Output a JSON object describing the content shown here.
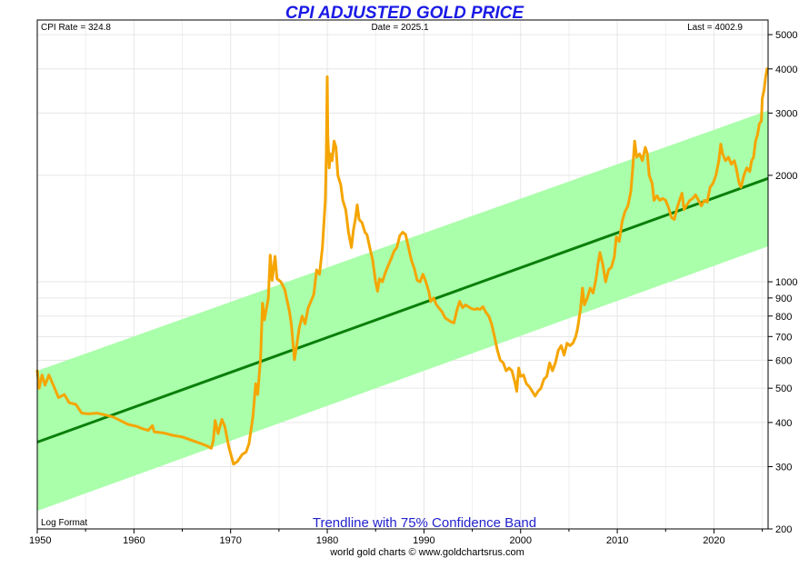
{
  "chart_data": {
    "type": "line",
    "title": "CPI ADJUSTED GOLD PRICE",
    "info": {
      "cpi_rate": "CPI Rate = 324.8",
      "date": "Date = 2025.1",
      "last": "Last = 4002.9"
    },
    "scale_note": "Log Format",
    "band_label": "Trendline with 75% Confidence Band",
    "credit": "world gold charts © www.goldchartsrus.com",
    "xlim": [
      1950,
      2025.6
    ],
    "ylim": [
      200,
      5500
    ],
    "y_scale": "log",
    "x_ticks": [
      1950,
      1960,
      1970,
      1980,
      1990,
      2000,
      2010,
      2020
    ],
    "x_tick_labels": [
      "1950",
      "1960",
      "1970",
      "1980",
      "1990",
      "2000",
      "2010",
      "2020"
    ],
    "y_ticks": [
      200,
      300,
      400,
      500,
      600,
      700,
      800,
      900,
      1000,
      2000,
      3000,
      4000,
      5000
    ],
    "y_tick_labels": [
      "200",
      "300",
      "400",
      "500",
      "600",
      "700",
      "800",
      "900",
      "1000",
      "2000",
      "3000",
      "4000",
      "5000"
    ],
    "grid": true,
    "colors": {
      "gold_line": "#f5a500",
      "trend_line": "#0a7f0a",
      "band_fill": "#aaffaa",
      "title": "#1a1ae6",
      "band_label": "#2222cc"
    },
    "trend": {
      "start": [
        1950,
        352
      ],
      "end": [
        2025.6,
        1960
      ]
    },
    "band": {
      "upper": [
        [
          1950,
          560
        ],
        [
          2025.6,
          3050
        ]
      ],
      "lower": [
        [
          1950,
          225
        ],
        [
          2025.6,
          1260
        ]
      ]
    },
    "series": [
      {
        "name": "CPI adjusted gold price",
        "points": [
          [
            1950.0,
            560
          ],
          [
            1950.2,
            500
          ],
          [
            1950.5,
            545
          ],
          [
            1950.8,
            510
          ],
          [
            1951.2,
            545
          ],
          [
            1951.8,
            500
          ],
          [
            1952.2,
            470
          ],
          [
            1952.8,
            480
          ],
          [
            1953.3,
            455
          ],
          [
            1954.0,
            450
          ],
          [
            1954.6,
            425
          ],
          [
            1955.3,
            423
          ],
          [
            1956.2,
            425
          ],
          [
            1957.0,
            420
          ],
          [
            1957.8,
            415
          ],
          [
            1958.6,
            405
          ],
          [
            1959.4,
            395
          ],
          [
            1960.3,
            390
          ],
          [
            1960.9,
            384
          ],
          [
            1961.5,
            380
          ],
          [
            1961.9,
            392
          ],
          [
            1962.1,
            376
          ],
          [
            1963.0,
            374
          ],
          [
            1964.0,
            368
          ],
          [
            1965.0,
            364
          ],
          [
            1966.0,
            356
          ],
          [
            1967.0,
            348
          ],
          [
            1967.6,
            343
          ],
          [
            1968.0,
            338
          ],
          [
            1968.2,
            355
          ],
          [
            1968.4,
            405
          ],
          [
            1968.7,
            372
          ],
          [
            1969.1,
            408
          ],
          [
            1969.4,
            390
          ],
          [
            1969.8,
            342
          ],
          [
            1970.3,
            305
          ],
          [
            1970.7,
            310
          ],
          [
            1971.2,
            325
          ],
          [
            1971.6,
            330
          ],
          [
            1971.9,
            348
          ],
          [
            1972.3,
            415
          ],
          [
            1972.6,
            515
          ],
          [
            1972.8,
            480
          ],
          [
            1973.1,
            610
          ],
          [
            1973.3,
            870
          ],
          [
            1973.5,
            780
          ],
          [
            1973.9,
            900
          ],
          [
            1974.1,
            1190
          ],
          [
            1974.3,
            1010
          ],
          [
            1974.6,
            1180
          ],
          [
            1974.8,
            1020
          ],
          [
            1975.2,
            1000
          ],
          [
            1975.6,
            950
          ],
          [
            1976.1,
            820
          ],
          [
            1976.3,
            750
          ],
          [
            1976.6,
            602
          ],
          [
            1976.8,
            650
          ],
          [
            1977.1,
            740
          ],
          [
            1977.4,
            800
          ],
          [
            1977.7,
            760
          ],
          [
            1978.0,
            840
          ],
          [
            1978.3,
            880
          ],
          [
            1978.6,
            920
          ],
          [
            1978.9,
            1080
          ],
          [
            1979.2,
            1050
          ],
          [
            1979.5,
            1250
          ],
          [
            1979.8,
            1700
          ],
          [
            1979.9,
            2300
          ],
          [
            1980.0,
            3800
          ],
          [
            1980.05,
            2600
          ],
          [
            1980.2,
            2100
          ],
          [
            1980.3,
            2300
          ],
          [
            1980.5,
            2200
          ],
          [
            1980.7,
            2500
          ],
          [
            1980.9,
            2400
          ],
          [
            1981.1,
            2000
          ],
          [
            1981.4,
            1880
          ],
          [
            1981.6,
            1700
          ],
          [
            1981.9,
            1600
          ],
          [
            1982.2,
            1380
          ],
          [
            1982.5,
            1250
          ],
          [
            1982.7,
            1400
          ],
          [
            1982.9,
            1500
          ],
          [
            1983.1,
            1650
          ],
          [
            1983.3,
            1500
          ],
          [
            1983.6,
            1470
          ],
          [
            1983.9,
            1380
          ],
          [
            1984.1,
            1360
          ],
          [
            1984.4,
            1250
          ],
          [
            1984.7,
            1150
          ],
          [
            1985.0,
            1000
          ],
          [
            1985.2,
            940
          ],
          [
            1985.4,
            1020
          ],
          [
            1985.7,
            1000
          ],
          [
            1986.0,
            1060
          ],
          [
            1986.3,
            1110
          ],
          [
            1986.6,
            1160
          ],
          [
            1986.9,
            1220
          ],
          [
            1987.2,
            1250
          ],
          [
            1987.5,
            1350
          ],
          [
            1987.8,
            1380
          ],
          [
            1988.1,
            1360
          ],
          [
            1988.4,
            1250
          ],
          [
            1988.7,
            1150
          ],
          [
            1989.0,
            1090
          ],
          [
            1989.3,
            1010
          ],
          [
            1989.6,
            1000
          ],
          [
            1989.9,
            1050
          ],
          [
            1990.2,
            1000
          ],
          [
            1990.5,
            940
          ],
          [
            1990.7,
            880
          ],
          [
            1991.0,
            900
          ],
          [
            1991.3,
            860
          ],
          [
            1991.6,
            840
          ],
          [
            1991.9,
            820
          ],
          [
            1992.2,
            790
          ],
          [
            1992.5,
            780
          ],
          [
            1992.8,
            770
          ],
          [
            1993.1,
            765
          ],
          [
            1993.4,
            830
          ],
          [
            1993.7,
            880
          ],
          [
            1994.0,
            845
          ],
          [
            1994.3,
            860
          ],
          [
            1994.6,
            850
          ],
          [
            1994.9,
            840
          ],
          [
            1995.2,
            835
          ],
          [
            1995.5,
            840
          ],
          [
            1995.8,
            835
          ],
          [
            1996.1,
            850
          ],
          [
            1996.4,
            820
          ],
          [
            1996.7,
            800
          ],
          [
            1997.0,
            760
          ],
          [
            1997.3,
            700
          ],
          [
            1997.6,
            640
          ],
          [
            1997.9,
            600
          ],
          [
            1998.2,
            590
          ],
          [
            1998.5,
            560
          ],
          [
            1998.8,
            570
          ],
          [
            1999.1,
            560
          ],
          [
            1999.4,
            520
          ],
          [
            1999.6,
            490
          ],
          [
            1999.8,
            570
          ],
          [
            2000.0,
            540
          ],
          [
            2000.3,
            545
          ],
          [
            2000.6,
            515
          ],
          [
            2000.9,
            505
          ],
          [
            2001.2,
            490
          ],
          [
            2001.5,
            475
          ],
          [
            2001.8,
            490
          ],
          [
            2002.1,
            500
          ],
          [
            2002.4,
            530
          ],
          [
            2002.7,
            540
          ],
          [
            2003.0,
            590
          ],
          [
            2003.3,
            560
          ],
          [
            2003.6,
            590
          ],
          [
            2003.9,
            640
          ],
          [
            2004.2,
            660
          ],
          [
            2004.5,
            620
          ],
          [
            2004.8,
            670
          ],
          [
            2005.1,
            660
          ],
          [
            2005.4,
            670
          ],
          [
            2005.7,
            700
          ],
          [
            2005.9,
            740
          ],
          [
            2006.2,
            840
          ],
          [
            2006.4,
            960
          ],
          [
            2006.6,
            860
          ],
          [
            2006.9,
            900
          ],
          [
            2007.2,
            960
          ],
          [
            2007.5,
            930
          ],
          [
            2007.8,
            1020
          ],
          [
            2008.0,
            1120
          ],
          [
            2008.2,
            1210
          ],
          [
            2008.5,
            1120
          ],
          [
            2008.8,
            1000
          ],
          [
            2009.1,
            1080
          ],
          [
            2009.4,
            1100
          ],
          [
            2009.7,
            1180
          ],
          [
            2009.9,
            1340
          ],
          [
            2010.2,
            1300
          ],
          [
            2010.5,
            1480
          ],
          [
            2010.8,
            1580
          ],
          [
            2011.1,
            1640
          ],
          [
            2011.4,
            1800
          ],
          [
            2011.6,
            2100
          ],
          [
            2011.8,
            2500
          ],
          [
            2012.0,
            2250
          ],
          [
            2012.3,
            2300
          ],
          [
            2012.6,
            2200
          ],
          [
            2012.9,
            2400
          ],
          [
            2013.1,
            2300
          ],
          [
            2013.3,
            2000
          ],
          [
            2013.6,
            1900
          ],
          [
            2013.8,
            1700
          ],
          [
            2014.1,
            1750
          ],
          [
            2014.4,
            1700
          ],
          [
            2014.7,
            1720
          ],
          [
            2015.0,
            1700
          ],
          [
            2015.3,
            1620
          ],
          [
            2015.6,
            1520
          ],
          [
            2015.9,
            1500
          ],
          [
            2016.2,
            1620
          ],
          [
            2016.5,
            1720
          ],
          [
            2016.7,
            1780
          ],
          [
            2016.9,
            1600
          ],
          [
            2017.2,
            1650
          ],
          [
            2017.5,
            1700
          ],
          [
            2017.8,
            1720
          ],
          [
            2018.1,
            1760
          ],
          [
            2018.4,
            1700
          ],
          [
            2018.7,
            1640
          ],
          [
            2019.0,
            1700
          ],
          [
            2019.3,
            1680
          ],
          [
            2019.6,
            1850
          ],
          [
            2019.9,
            1900
          ],
          [
            2020.2,
            2000
          ],
          [
            2020.5,
            2200
          ],
          [
            2020.7,
            2450
          ],
          [
            2020.9,
            2300
          ],
          [
            2021.2,
            2200
          ],
          [
            2021.5,
            2250
          ],
          [
            2021.8,
            2150
          ],
          [
            2022.1,
            2200
          ],
          [
            2022.3,
            2100
          ],
          [
            2022.6,
            1900
          ],
          [
            2022.8,
            1850
          ],
          [
            2023.1,
            2000
          ],
          [
            2023.4,
            2100
          ],
          [
            2023.7,
            2050
          ],
          [
            2023.9,
            2200
          ],
          [
            2024.1,
            2250
          ],
          [
            2024.3,
            2500
          ],
          [
            2024.5,
            2600
          ],
          [
            2024.7,
            2800
          ],
          [
            2024.9,
            2850
          ],
          [
            2025.0,
            3300
          ],
          [
            2025.2,
            3500
          ],
          [
            2025.35,
            3800
          ],
          [
            2025.5,
            4002.9
          ]
        ]
      }
    ]
  }
}
